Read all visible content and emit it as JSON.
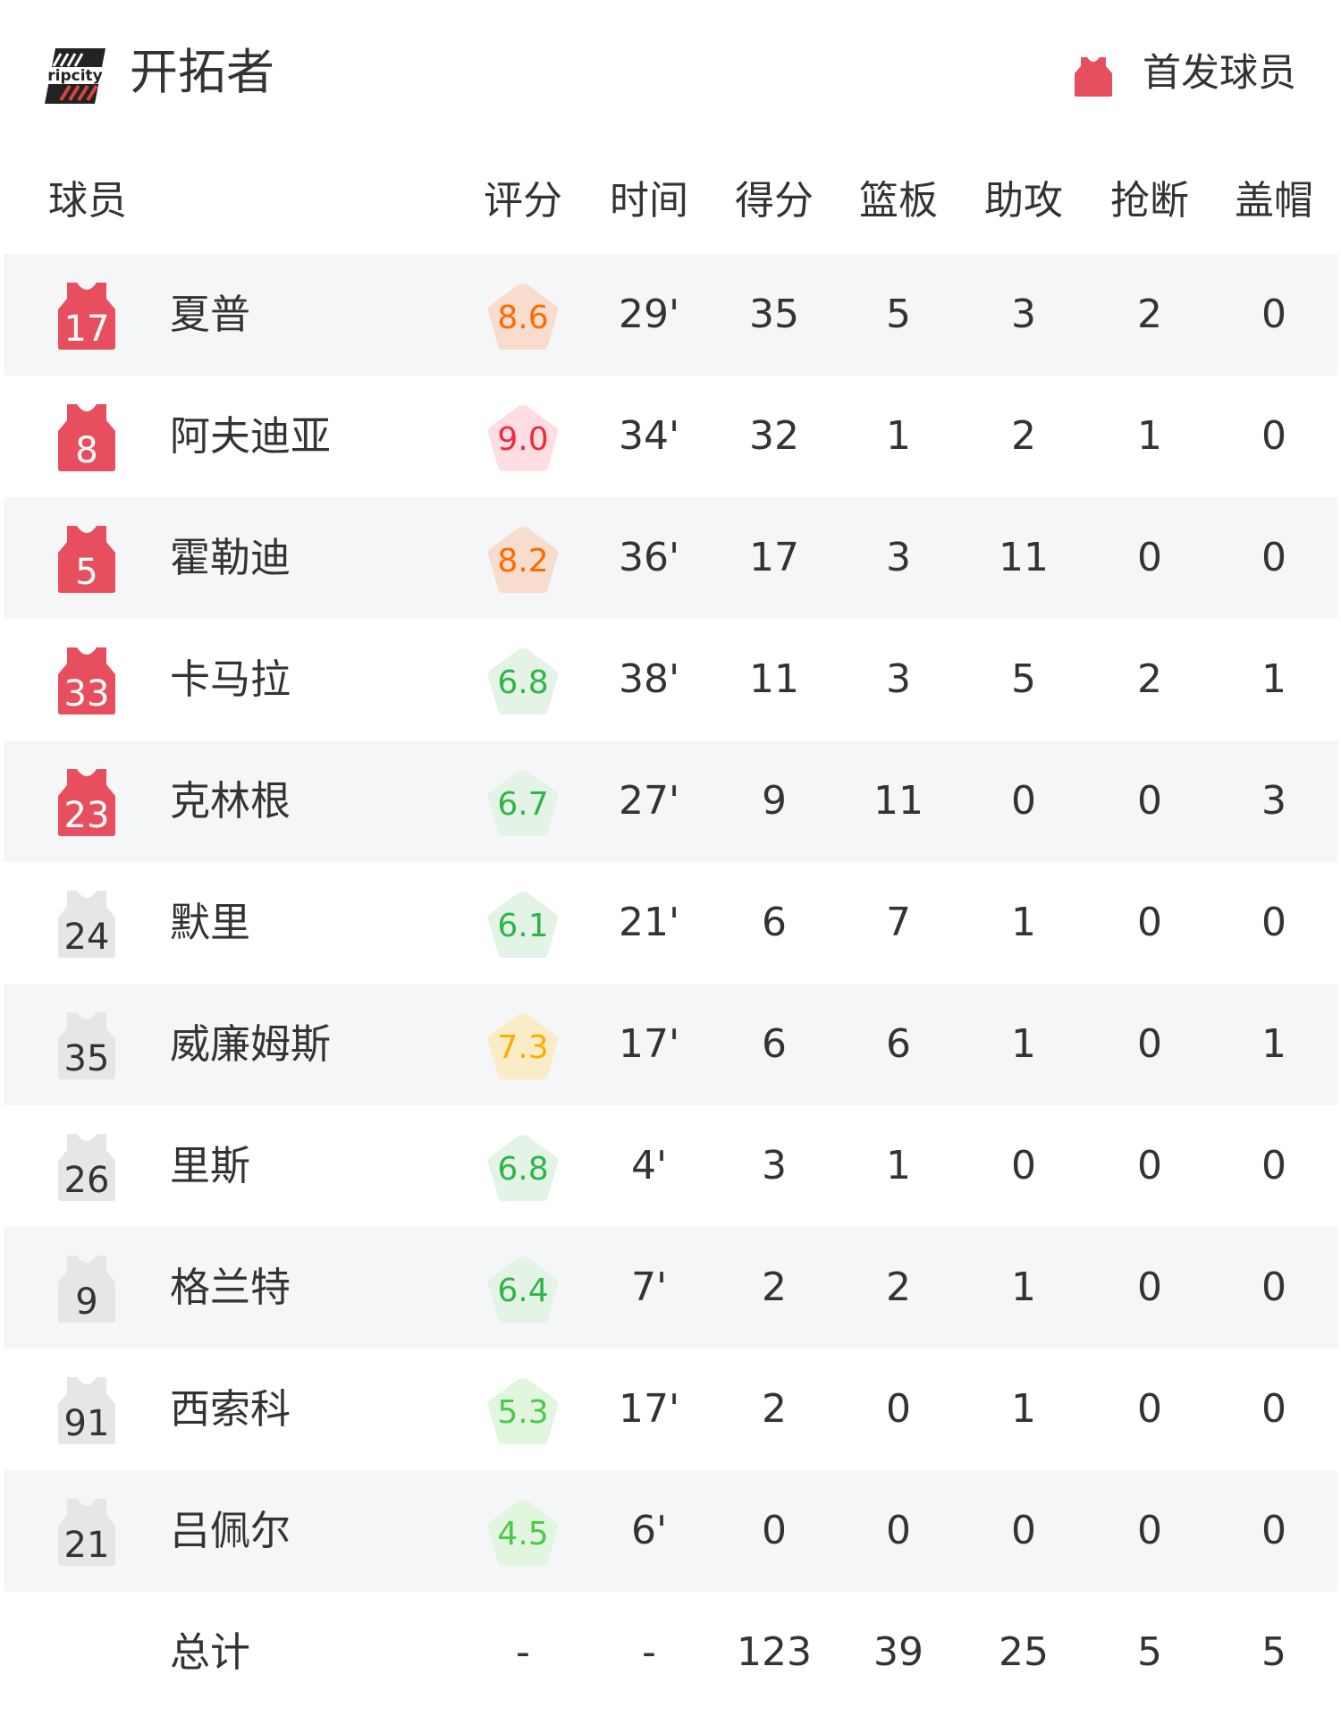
{
  "header": {
    "team_name": "开拓者",
    "logo_text": "ripcity",
    "legend_label": "首发球员",
    "legend_icon": "jersey-icon"
  },
  "columns": [
    "球员",
    "评分",
    "时间",
    "得分",
    "篮板",
    "助攻",
    "抢断",
    "盖帽"
  ],
  "colors": {
    "starter_jersey": "#e84f5e",
    "bench_jersey": "#e6e6e6",
    "row_alt_bg": "#f5f6f8",
    "rating_orange": {
      "text": "#ff6a00",
      "bg": "#f8dccd"
    },
    "rating_red": {
      "text": "#f0283c",
      "bg": "#ffdde2"
    },
    "rating_yellow": {
      "text": "#ffab00",
      "bg": "#fbecc8"
    },
    "rating_green": {
      "text": "#2fb44a",
      "bg": "#e3f3e5"
    },
    "rating_lightgreen": {
      "text": "#4cc94c",
      "bg": "#e2f5df"
    }
  },
  "players": [
    {
      "number": "17",
      "name": "夏普",
      "starter": true,
      "rating": "8.6",
      "rating_tier": "orange",
      "time": "29'",
      "pts": "35",
      "reb": "5",
      "ast": "3",
      "stl": "2",
      "blk": "0"
    },
    {
      "number": "8",
      "name": "阿夫迪亚",
      "starter": true,
      "rating": "9.0",
      "rating_tier": "red",
      "time": "34'",
      "pts": "32",
      "reb": "1",
      "ast": "2",
      "stl": "1",
      "blk": "0"
    },
    {
      "number": "5",
      "name": "霍勒迪",
      "starter": true,
      "rating": "8.2",
      "rating_tier": "orange",
      "time": "36'",
      "pts": "17",
      "reb": "3",
      "ast": "11",
      "stl": "0",
      "blk": "0"
    },
    {
      "number": "33",
      "name": "卡马拉",
      "starter": true,
      "rating": "6.8",
      "rating_tier": "green",
      "time": "38'",
      "pts": "11",
      "reb": "3",
      "ast": "5",
      "stl": "2",
      "blk": "1"
    },
    {
      "number": "23",
      "name": "克林根",
      "starter": true,
      "rating": "6.7",
      "rating_tier": "green",
      "time": "27'",
      "pts": "9",
      "reb": "11",
      "ast": "0",
      "stl": "0",
      "blk": "3"
    },
    {
      "number": "24",
      "name": "默里",
      "starter": false,
      "rating": "6.1",
      "rating_tier": "green",
      "time": "21'",
      "pts": "6",
      "reb": "7",
      "ast": "1",
      "stl": "0",
      "blk": "0"
    },
    {
      "number": "35",
      "name": "威廉姆斯",
      "starter": false,
      "rating": "7.3",
      "rating_tier": "yellow",
      "time": "17'",
      "pts": "6",
      "reb": "6",
      "ast": "1",
      "stl": "0",
      "blk": "1"
    },
    {
      "number": "26",
      "name": "里斯",
      "starter": false,
      "rating": "6.8",
      "rating_tier": "green",
      "time": "4'",
      "pts": "3",
      "reb": "1",
      "ast": "0",
      "stl": "0",
      "blk": "0"
    },
    {
      "number": "9",
      "name": "格兰特",
      "starter": false,
      "rating": "6.4",
      "rating_tier": "green",
      "time": "7'",
      "pts": "2",
      "reb": "2",
      "ast": "1",
      "stl": "0",
      "blk": "0"
    },
    {
      "number": "91",
      "name": "西索科",
      "starter": false,
      "rating": "5.3",
      "rating_tier": "lightgreen",
      "time": "17'",
      "pts": "2",
      "reb": "0",
      "ast": "1",
      "stl": "0",
      "blk": "0"
    },
    {
      "number": "21",
      "name": "吕佩尔",
      "starter": false,
      "rating": "4.5",
      "rating_tier": "lightgreen",
      "time": "6'",
      "pts": "0",
      "reb": "0",
      "ast": "0",
      "stl": "0",
      "blk": "0"
    }
  ],
  "totals": {
    "label": "总计",
    "rating": "-",
    "time": "-",
    "pts": "123",
    "reb": "39",
    "ast": "25",
    "stl": "5",
    "blk": "5"
  }
}
